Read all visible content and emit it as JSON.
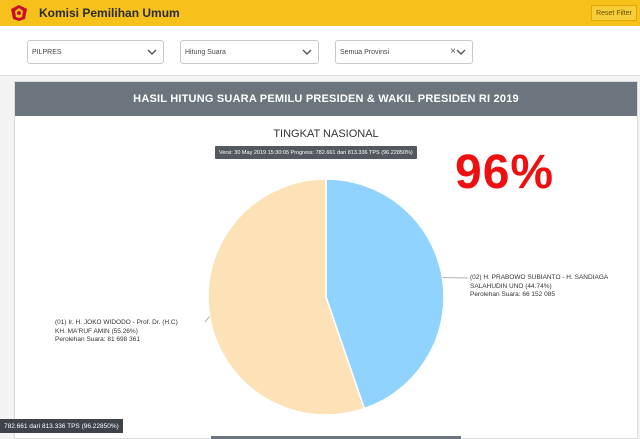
{
  "header": {
    "app_title": "Komisi Pemilihan Umum",
    "reset_label": "Reset Filter",
    "brand_color": "#f6c11b"
  },
  "filters": {
    "election": "PILPRES",
    "count_type": "Hitung Suara",
    "province": "Semua Provinsi"
  },
  "panel": {
    "heading": "HASIL HITUNG SUARA PEMILU PRESIDEN & WAKIL PRESIDEN RI 2019",
    "subtitle": "TINGKAT NASIONAL",
    "version_note": "Versi: 30 May 2019 15:30:05 Progress: 782.661 dari 813.336 TPS (96.22850%)",
    "big_percent": "96%"
  },
  "chart_data": {
    "type": "pie",
    "slices": [
      {
        "label_line1": "(02) H. PRABOWO SUBIANTO - H. SANDIAGA",
        "label_line2": "SALAHUDIN UNO (44.74%)",
        "label_line3": "Perolehan Suara: 66 152 085",
        "percent": 44.74,
        "votes": 66152085,
        "color": "#8fd3fe"
      },
      {
        "label_line1": "(01) Ir. H. JOKO WIDODO - Prof. Dr. (H.C)",
        "label_line2": "KH. MA'RUF AMIN (55.26%)",
        "label_line3": "Perolehan Suara: 81 698 361",
        "percent": 55.26,
        "votes": 81698361,
        "color": "#fde2b8"
      }
    ]
  },
  "footer": {
    "progress_text": "782.661 dari 813.336 TPS (96.22850%)"
  }
}
